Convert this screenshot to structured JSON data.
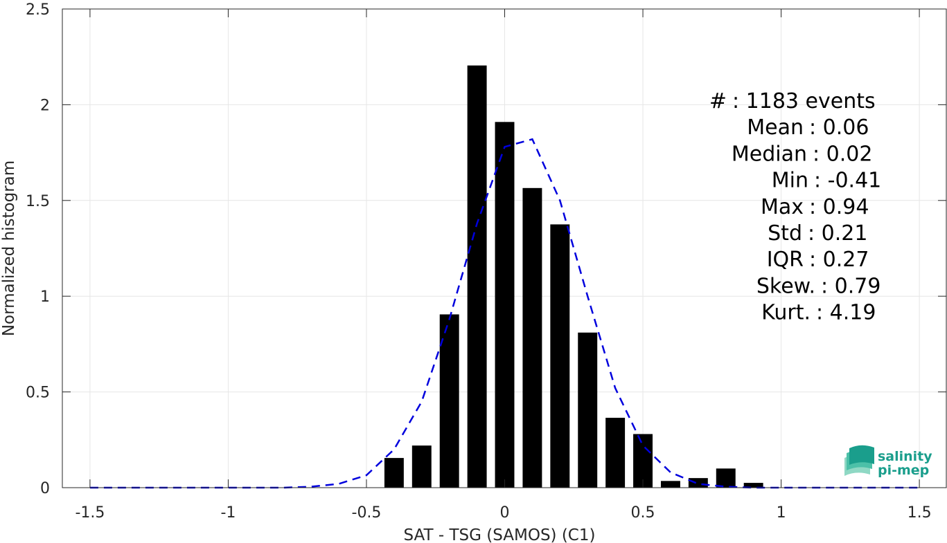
{
  "chart_data": {
    "type": "bar",
    "xlabel": "SAT - TSG (SAMOS) (C1)",
    "ylabel": "Normalized histogram",
    "xlim": [
      -1.6,
      1.6
    ],
    "ylim": [
      0,
      2.5
    ],
    "xticks": [
      -1.5,
      -1,
      -0.5,
      0,
      0.5,
      1,
      1.5
    ],
    "xtick_labels": [
      "-1.5",
      "-1",
      "-0.5",
      "0",
      "0.5",
      "1",
      "1.5"
    ],
    "yticks": [
      0,
      0.5,
      1,
      1.5,
      2,
      2.5
    ],
    "ytick_labels": [
      "0",
      "0.5",
      "1",
      "1.5",
      "2",
      "2.5"
    ],
    "grid": true,
    "bar_color": "#000000",
    "bar_width": 0.07,
    "bars": {
      "x": [
        -0.4,
        -0.3,
        -0.2,
        -0.1,
        0.0,
        0.1,
        0.2,
        0.3,
        0.4,
        0.5,
        0.6,
        0.7,
        0.8,
        0.9
      ],
      "values": [
        0.155,
        0.22,
        0.905,
        2.205,
        1.91,
        1.565,
        1.375,
        0.81,
        0.365,
        0.28,
        0.035,
        0.05,
        0.1,
        0.025
      ]
    },
    "fit_curve": {
      "color": "#0000dd",
      "style": "dashed",
      "x": [
        -1.5,
        -1.4,
        -1.3,
        -1.2,
        -1.1,
        -1.0,
        -0.9,
        -0.8,
        -0.7,
        -0.6,
        -0.5,
        -0.4,
        -0.3,
        -0.2,
        -0.1,
        0.0,
        0.1,
        0.2,
        0.3,
        0.4,
        0.5,
        0.6,
        0.7,
        0.8,
        0.9,
        1.0,
        1.1,
        1.2,
        1.3,
        1.4,
        1.5
      ],
      "y": [
        0,
        0,
        0,
        0,
        0,
        0,
        0,
        0,
        0.005,
        0.02,
        0.065,
        0.2,
        0.45,
        0.88,
        1.38,
        1.78,
        1.82,
        1.5,
        1.0,
        0.52,
        0.22,
        0.08,
        0.02,
        0.005,
        0,
        0,
        0,
        0,
        0,
        0,
        0
      ]
    }
  },
  "stats": [
    {
      "label": "#  ",
      "value": ": 1183 events"
    },
    {
      "label": "Mean",
      "value": ": 0.06"
    },
    {
      "label": "Median",
      "value": ": 0.02"
    },
    {
      "label": "Min",
      "value": ": -0.41"
    },
    {
      "label": "Max",
      "value": ": 0.94"
    },
    {
      "label": "Std",
      "value": ": 0.21"
    },
    {
      "label": "IQR",
      "value": ": 0.27"
    },
    {
      "label": "Skew.",
      "value": ": 0.79"
    },
    {
      "label": "Kurt.",
      "value": ": 4.19"
    }
  ],
  "logo": {
    "line1": "salinity",
    "line2": "pi-mep",
    "colors": [
      "#1a9e8c",
      "#4cc0a8",
      "#8fd8c4"
    ]
  }
}
